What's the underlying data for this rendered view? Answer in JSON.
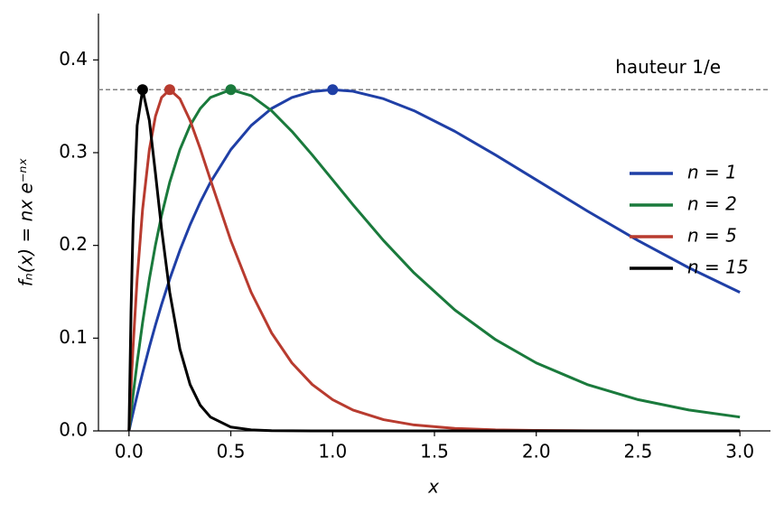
{
  "chart_data": {
    "type": "line",
    "x_label": "x",
    "y_label": "fₙ(x) = nx e⁻ⁿˣ",
    "x": [
      0,
      0.01,
      0.02,
      0.04,
      0.0667,
      0.1,
      0.13,
      0.16,
      0.2,
      0.25,
      0.3,
      0.35,
      0.4,
      0.5,
      0.6,
      0.7,
      0.8,
      0.9,
      1.0,
      1.1,
      1.25,
      1.4,
      1.6,
      1.8,
      2.0,
      2.25,
      2.5,
      2.75,
      3.0
    ],
    "series": [
      {
        "name": "n = 1",
        "color": "#1f3fa6",
        "peak": {
          "x": 1.0,
          "y": 0.3679
        },
        "values": [
          0,
          0.0099,
          0.0196,
          0.0384,
          0.0624,
          0.0905,
          0.1142,
          0.1363,
          0.1637,
          0.1947,
          0.2222,
          0.2466,
          0.2681,
          0.3033,
          0.3293,
          0.3476,
          0.3595,
          0.3659,
          0.3679,
          0.3662,
          0.3581,
          0.3452,
          0.323,
          0.2975,
          0.2707,
          0.2372,
          0.2052,
          0.1758,
          0.1494
        ]
      },
      {
        "name": "n = 2",
        "color": "#1a7a3c",
        "peak": {
          "x": 0.5,
          "y": 0.3679
        },
        "values": [
          0,
          0.0196,
          0.0384,
          0.0738,
          0.1167,
          0.1637,
          0.2005,
          0.2324,
          0.2681,
          0.3033,
          0.3293,
          0.3476,
          0.3595,
          0.3679,
          0.3614,
          0.3452,
          0.323,
          0.2975,
          0.2707,
          0.2438,
          0.2052,
          0.1703,
          0.1304,
          0.0984,
          0.0733,
          0.05,
          0.0337,
          0.0225,
          0.0149
        ]
      },
      {
        "name": "n = 5",
        "color": "#b83b2f",
        "peak": {
          "x": 0.2,
          "y": 0.3679
        },
        "values": [
          0,
          0.0476,
          0.0905,
          0.1637,
          0.2388,
          0.3033,
          0.3393,
          0.3595,
          0.3679,
          0.3581,
          0.3347,
          0.3041,
          0.2707,
          0.2052,
          0.1494,
          0.1057,
          0.0733,
          0.05,
          0.0337,
          0.0225,
          0.0121,
          0.0064,
          0.0027,
          0.0011,
          0.0005,
          0.0001,
          0,
          0,
          0
        ]
      },
      {
        "name": "n = 15",
        "color": "#000000",
        "peak": {
          "x": 0.0667,
          "y": 0.3679
        },
        "values": [
          0,
          0.1291,
          0.2222,
          0.3293,
          0.3679,
          0.3347,
          0.2775,
          0.2177,
          0.1494,
          0.0882,
          0.05,
          0.0276,
          0.0149,
          0.0041,
          0.0011,
          0.0003,
          0.0001,
          0,
          0,
          0,
          0,
          0,
          0,
          0,
          0,
          0,
          0,
          0,
          0
        ]
      }
    ],
    "reference_line": {
      "y": 0.3679,
      "label": "hauteur 1/e",
      "color": "#808080"
    },
    "xlim": [
      -0.15,
      3.15
    ],
    "ylim": [
      0,
      0.45
    ],
    "xticks": [
      {
        "value": 0,
        "label": "0.0"
      },
      0.5,
      {
        "value": 1,
        "label": "1.0"
      },
      1.5,
      {
        "value": 2,
        "label": "2.0"
      },
      2.5,
      {
        "value": 3,
        "label": "3.0"
      }
    ],
    "yticks": [
      {
        "value": 0,
        "label": "0.0"
      },
      0.1,
      0.2,
      0.3,
      0.4
    ],
    "grid": false,
    "legend": "right"
  }
}
